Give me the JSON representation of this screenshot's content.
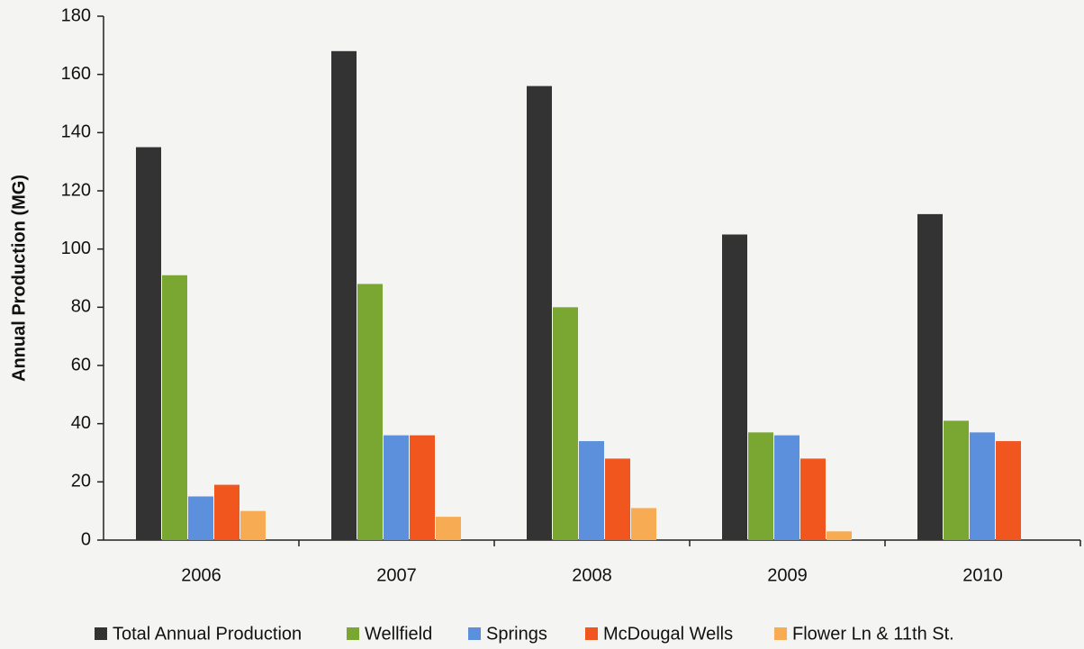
{
  "chart_data": {
    "type": "bar",
    "y_label": "Annual Production (MG)",
    "categories": [
      "2006",
      "2007",
      "2008",
      "2009",
      "2010"
    ],
    "series": [
      {
        "name": "Total Annual Production",
        "color": "#333333",
        "values": [
          135,
          168,
          156,
          105,
          112
        ]
      },
      {
        "name": "Wellfield",
        "color": "#7aa632",
        "values": [
          91,
          88,
          80,
          37,
          41
        ]
      },
      {
        "name": "Springs",
        "color": "#5c90dc",
        "values": [
          15,
          36,
          34,
          36,
          37
        ]
      },
      {
        "name": "McDougal Wells",
        "color": "#f2561f",
        "values": [
          19,
          36,
          28,
          28,
          34
        ]
      },
      {
        "name": "Flower Ln & 11th St.",
        "color": "#f7ab52",
        "values": [
          10,
          8,
          11,
          3,
          null
        ]
      }
    ],
    "ylim": [
      0,
      180
    ],
    "yticks": [
      0,
      20,
      40,
      60,
      80,
      100,
      120,
      140,
      160,
      180
    ]
  }
}
